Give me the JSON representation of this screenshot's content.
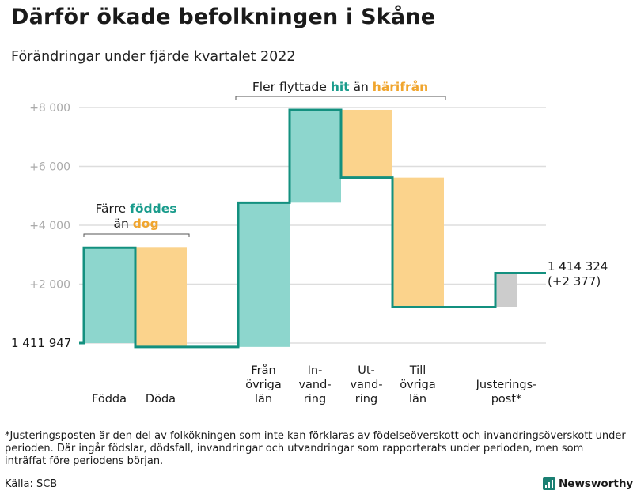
{
  "title": "Därför ökade befolkningen i Skåne",
  "subtitle": "Förändringar under fjärde kvartalet 2022",
  "colors": {
    "increase": "#8dd6cd",
    "decrease": "#fbd38c",
    "adjustment": "#cccccc",
    "step_line": "#13907f",
    "grid": "#dddddd",
    "tick_label": "#aaaaaa",
    "highlight_teal": "#1a9c8c",
    "highlight_orange": "#f0a52e"
  },
  "chart_data": {
    "type": "waterfall",
    "title": "Därför ökade befolkningen i Skåne",
    "subtitle": "Förändringar under fjärde kvartalet 2022",
    "base": 1411947,
    "end": 1414324,
    "total_change": "+2 377",
    "start_label": "1 411 947",
    "end_label": [
      "1 414 324",
      "(+2 377)"
    ],
    "y_ticks": [
      2000,
      4000,
      6000,
      8000
    ],
    "y_tick_labels": [
      "+2 000",
      "+4 000",
      "+6 000",
      "+8 000"
    ],
    "ylim": [
      0,
      8000
    ],
    "grid": true,
    "categories": [
      {
        "label": [
          "Födda"
        ],
        "value": 3240,
        "kind": "increase"
      },
      {
        "label": [
          "Döda"
        ],
        "value": -3370,
        "kind": "decrease"
      },
      {
        "label": [
          "Från",
          "övriga",
          "län"
        ],
        "value": 4900,
        "kind": "increase"
      },
      {
        "label": [
          "In-",
          "vand-",
          "ring"
        ],
        "value": 3150,
        "kind": "increase"
      },
      {
        "label": [
          "Ut-",
          "vand-",
          "ring"
        ],
        "value": -2300,
        "kind": "decrease"
      },
      {
        "label": [
          "Till",
          "övriga",
          "län"
        ],
        "value": -4400,
        "kind": "decrease"
      },
      {
        "label": [
          "Justerings-",
          "post*"
        ],
        "value": 1157,
        "kind": "adjustment"
      }
    ],
    "annotations": [
      {
        "lines": [
          [
            {
              "text": "Färre ",
              "style": "normal"
            },
            {
              "text": "föddes",
              "style": "teal"
            }
          ],
          [
            {
              "text": "än ",
              "style": "normal"
            },
            {
              "text": "dog",
              "style": "orange"
            }
          ]
        ]
      },
      {
        "lines": [
          [
            {
              "text": "Fler flyttade ",
              "style": "normal"
            },
            {
              "text": "hit",
              "style": "teal"
            },
            {
              "text": " än ",
              "style": "normal"
            },
            {
              "text": "härifrån",
              "style": "orange"
            }
          ]
        ]
      }
    ]
  },
  "footnote": "*Justeringsposten är den del av folkökningen som inte kan förklaras av födelseöverskott och invandringsöverskott under perioden. Där ingår födslar, dödsfall, invandringar och utvandringar som rapporterats under perioden, men som inträffat före periodens början.",
  "source": "Källa: SCB",
  "brand": "Newsworthy"
}
